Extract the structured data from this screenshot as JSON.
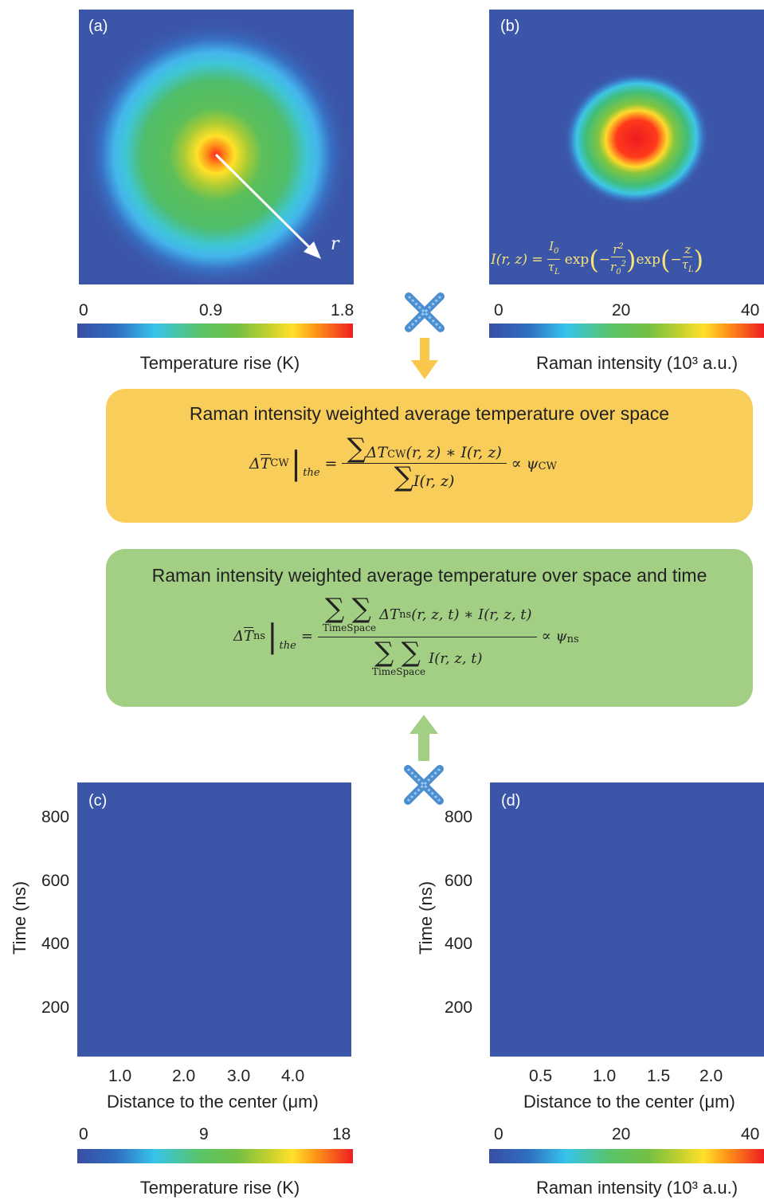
{
  "panels": {
    "a": {
      "label": "(a)",
      "arrow_label": "r"
    },
    "b": {
      "label": "(b)",
      "equation": "I(r, z) = (I₀/τ_L) exp(−r²/r₀²) exp(−z/τ_L)"
    },
    "c": {
      "label": "(c)"
    },
    "d": {
      "label": "(d)"
    }
  },
  "colorbars": {
    "top_left": {
      "ticks": [
        "0",
        "0.9",
        "1.8"
      ],
      "title": "Temperature rise (K)"
    },
    "top_right": {
      "ticks": [
        "0",
        "20",
        "40"
      ],
      "title": "Raman intensity (10³ a.u.)"
    },
    "bottom_left": {
      "ticks": [
        "0",
        "9",
        "18"
      ],
      "title": "Temperature rise (K)"
    },
    "bottom_right": {
      "ticks": [
        "0",
        "20",
        "40"
      ],
      "title": "Raman intensity (10³ a.u.)"
    }
  },
  "boxes": {
    "cw": {
      "title": "Raman intensity weighted average temperature over space",
      "lhs": "ΔT̄_CW|_the",
      "rhs": "∝ ψ_CW",
      "numerator": "∑ ΔT_CW(r,z) * I(r,z)",
      "denominator": "∑ I(r,z)"
    },
    "ns": {
      "title": "Raman intensity weighted average temperature over space and time",
      "lhs": "ΔT̄_ns|_the",
      "rhs": "∝ ψ_ns",
      "numerator": "∑ ∑ ΔT_ns(r,z,t) * I(r,z,t)",
      "denominator": "∑ ∑ I(r,z,t)",
      "sum_sub_1": "Time",
      "sum_sub_2": "Space"
    }
  },
  "colors": {
    "box_cw": "#f9cd5a",
    "box_ns": "#a3cf84",
    "arrow_cw": "#f9c84a",
    "arrow_ns": "#a3cf84",
    "cross": "#4c8fd0"
  },
  "chart_data": [
    {
      "type": "heatmap",
      "panel": "(c)",
      "xlabel": "Distance to the center (μm)",
      "ylabel": "Time (ns)",
      "x_ticks": [
        "1.0",
        "2.0",
        "3.0",
        "4.0"
      ],
      "y_ticks": [
        "200",
        "400",
        "600",
        "800"
      ],
      "xlim": [
        0.15,
        5.0
      ],
      "ylim": [
        50,
        900
      ],
      "colorbar": "Temperature rise (K)",
      "zlim": [
        0,
        18
      ]
    },
    {
      "type": "heatmap",
      "panel": "(d)",
      "xlabel": "Distance to the center (μm)",
      "ylabel": "Time (ns)",
      "x_ticks": [
        "0.5",
        "1.0",
        "1.5",
        "2.0"
      ],
      "y_ticks": [
        "200",
        "400",
        "600",
        "800"
      ],
      "xlim": [
        0.0,
        2.5
      ],
      "ylim": [
        50,
        900
      ],
      "colorbar": "Raman intensity (10³ a.u.)",
      "zlim": [
        0,
        40
      ]
    }
  ]
}
